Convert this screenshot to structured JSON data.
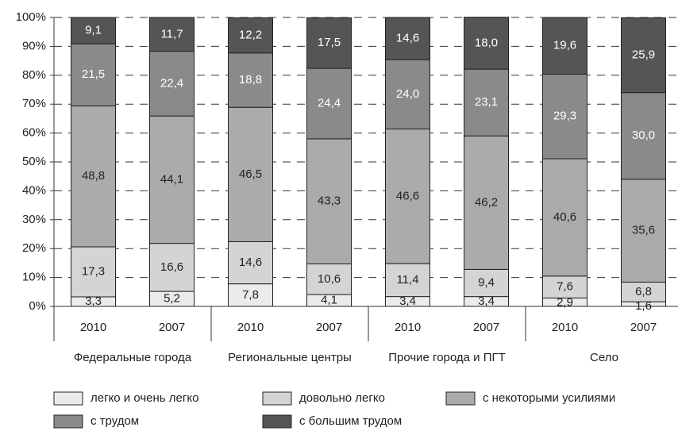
{
  "chart_data": {
    "type": "stacked_bar",
    "categories": [
      "2010",
      "2007",
      "2010",
      "2007",
      "2010",
      "2007",
      "2010",
      "2007"
    ],
    "groups": [
      "Федеральные города",
      "Региональные центры",
      "Прочие города и ПГТ",
      "Село"
    ],
    "ylim": [
      0,
      100
    ],
    "yticks": [
      {
        "value": 0,
        "label": "0%"
      },
      {
        "value": 10,
        "label": "10%"
      },
      {
        "value": 20,
        "label": "20%"
      },
      {
        "value": 30,
        "label": "30%"
      },
      {
        "value": 40,
        "label": "40%"
      },
      {
        "value": 50,
        "label": "50%"
      },
      {
        "value": 60,
        "label": "60%"
      },
      {
        "value": 70,
        "label": "70%"
      },
      {
        "value": 80,
        "label": "80%"
      },
      {
        "value": 90,
        "label": "90%"
      },
      {
        "value": 100,
        "label": "100%"
      }
    ],
    "grid": true,
    "series": [
      {
        "name": "легко и очень легко",
        "color": "#ebebeb",
        "label_color": "#222222",
        "values": [
          3.3,
          5.2,
          7.8,
          4.1,
          3.4,
          3.4,
          2.9,
          1.6
        ],
        "value_labels": [
          "3,3",
          "5,2",
          "7,8",
          "4,1",
          "3,4",
          "3,4",
          "2,9",
          "1,6"
        ]
      },
      {
        "name": "довольно легко",
        "color": "#d4d4d4",
        "label_color": "#222222",
        "values": [
          17.3,
          16.6,
          14.6,
          10.6,
          11.4,
          9.4,
          7.6,
          6.8
        ],
        "value_labels": [
          "17,3",
          "16,6",
          "14,6",
          "10,6",
          "11,4",
          "9,4",
          "7,6",
          "6,8"
        ]
      },
      {
        "name": "с некоторыми усилиями",
        "color": "#ababab",
        "label_color": "#222222",
        "values": [
          48.8,
          44.1,
          46.5,
          43.3,
          46.6,
          46.2,
          40.6,
          35.6
        ],
        "value_labels": [
          "48,8",
          "44,1",
          "46,5",
          "43,3",
          "46,6",
          "46,2",
          "40,6",
          "35,6"
        ]
      },
      {
        "name": "с трудом",
        "color": "#8a8a8a",
        "label_color": "#ffffff",
        "values": [
          21.5,
          22.4,
          18.8,
          24.4,
          24.0,
          23.1,
          29.3,
          30.0
        ],
        "value_labels": [
          "21,5",
          "22,4",
          "18,8",
          "24,4",
          "24,0",
          "23,1",
          "29,3",
          "30,0"
        ]
      },
      {
        "name": "с большим трудом",
        "color": "#555555",
        "label_color": "#ffffff",
        "values": [
          9.1,
          11.7,
          12.2,
          17.5,
          14.6,
          18.0,
          19.6,
          25.9
        ],
        "value_labels": [
          "9,1",
          "11,7",
          "12,2",
          "17,5",
          "14,6",
          "18,0",
          "19,6",
          "25,9"
        ]
      }
    ]
  }
}
